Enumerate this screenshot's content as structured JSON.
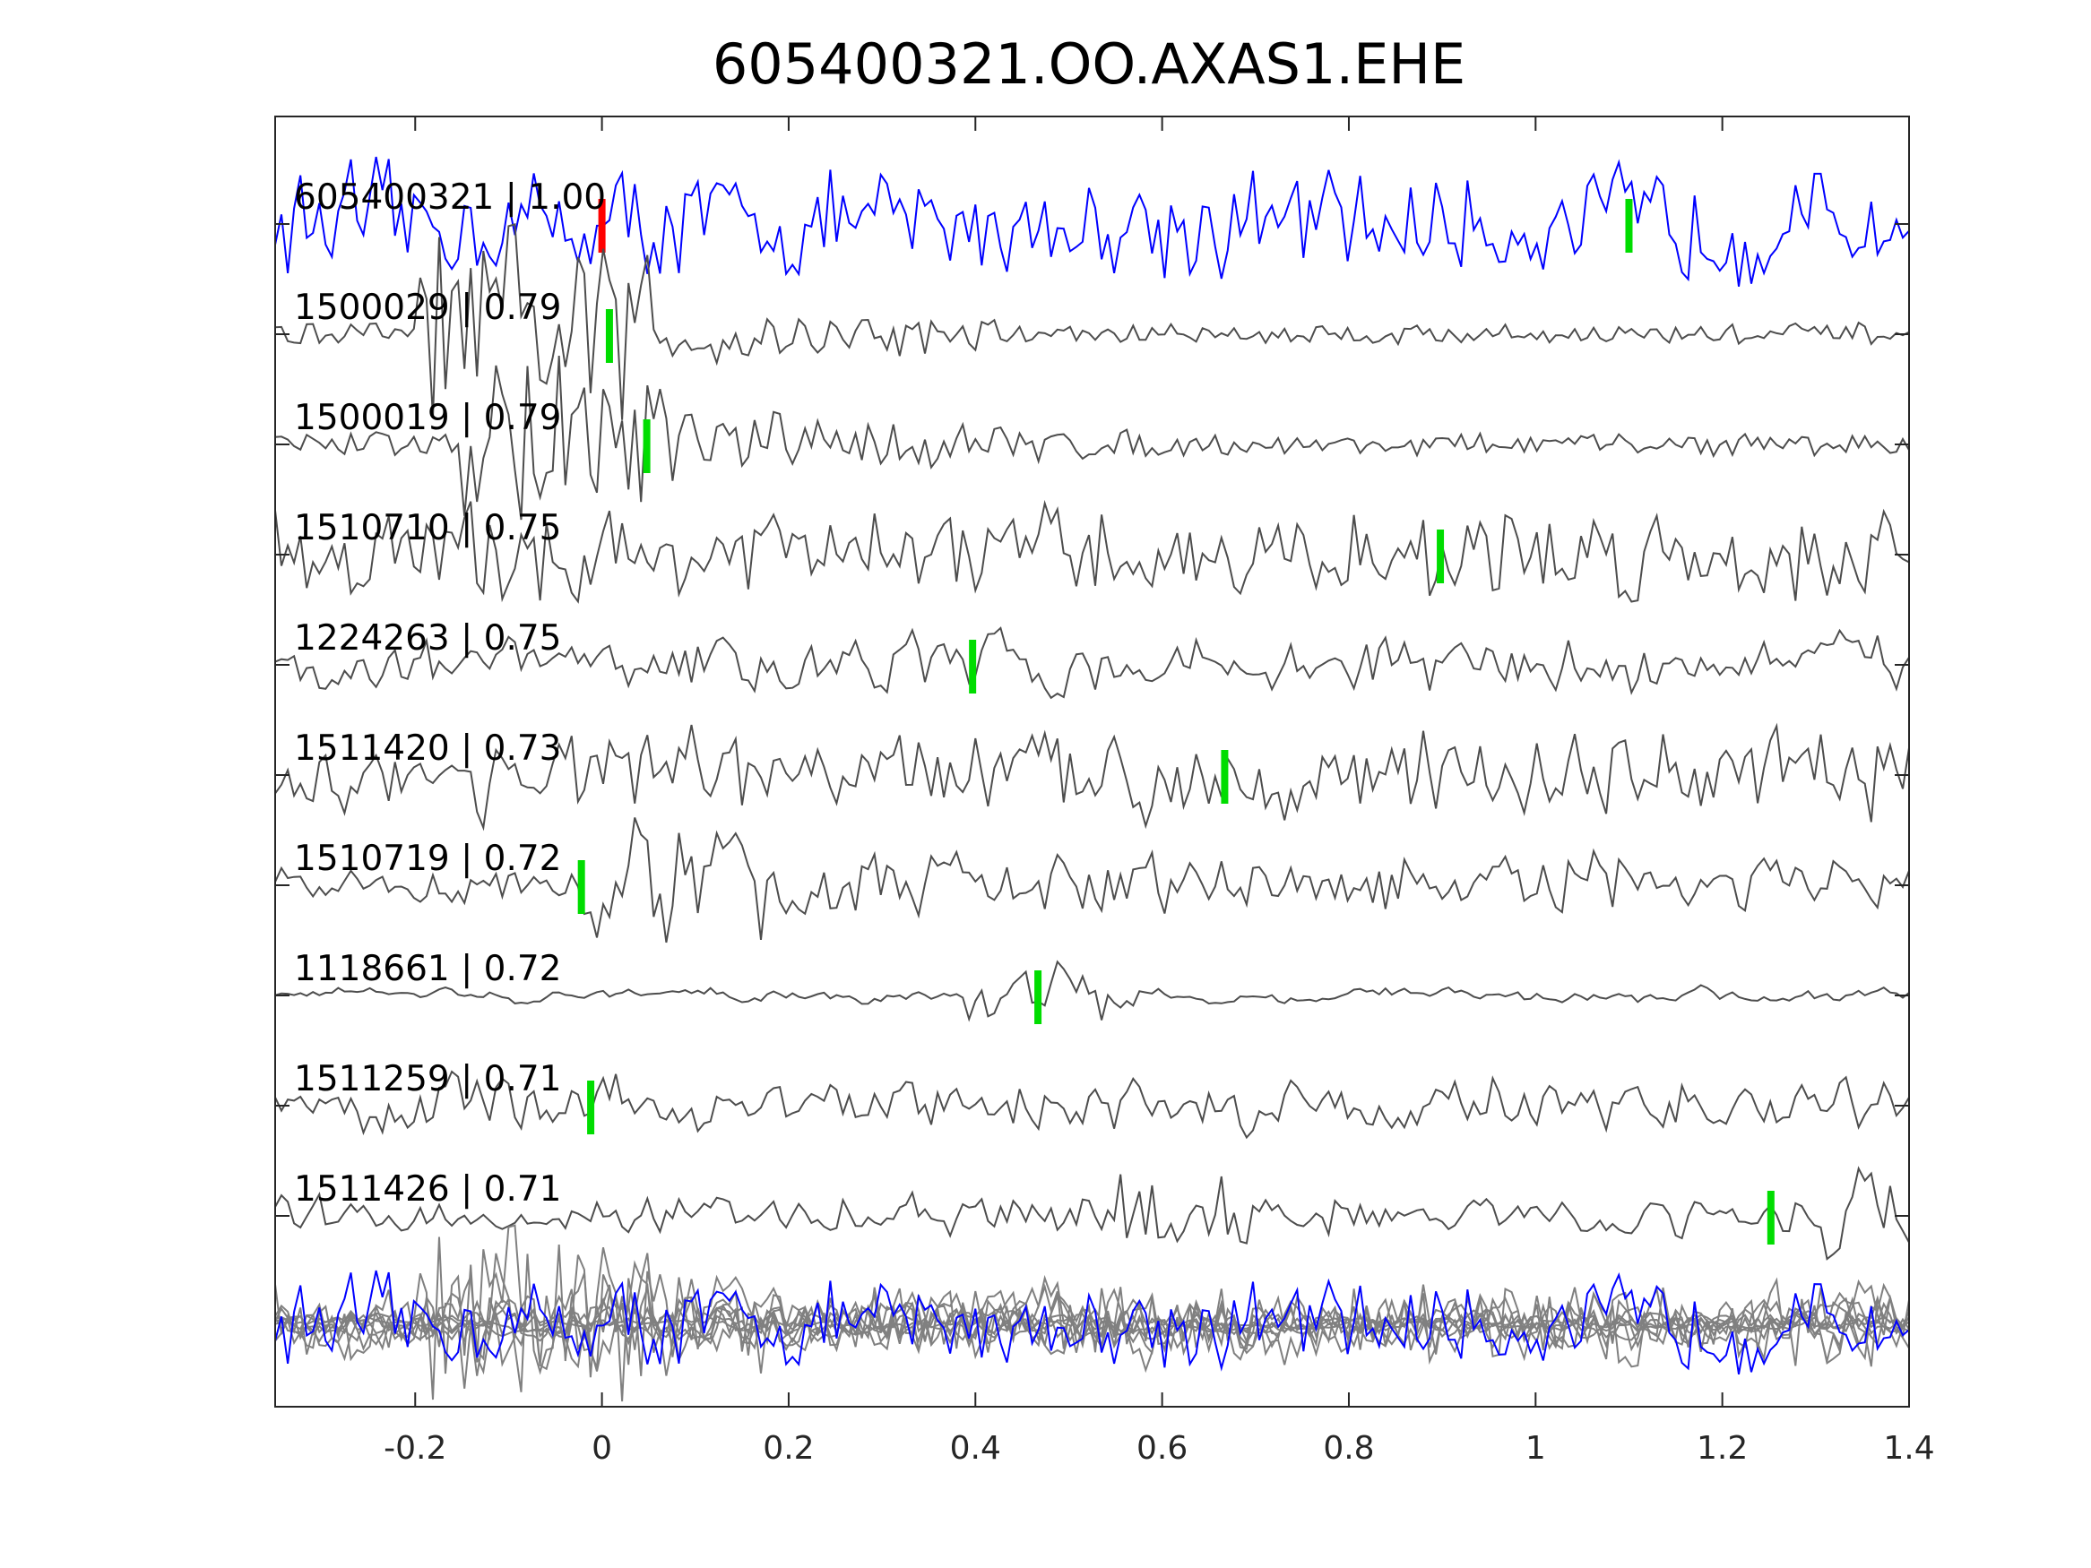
{
  "chart_data": {
    "type": "line",
    "title": "605400321.OO.AXAS1.EHE",
    "xlabel": "",
    "ylabel": "",
    "xlim": [
      -0.35,
      1.4
    ],
    "xticks": [
      -0.2,
      0,
      0.2,
      0.4,
      0.6,
      0.8,
      1,
      1.2,
      1.4
    ],
    "xtick_labels": [
      "-0.2",
      "0",
      "0.2",
      "0.4",
      "0.6",
      "0.8",
      "1",
      "1.2",
      "1.4"
    ],
    "grid": false,
    "colors": {
      "template": "#0000ff",
      "trace": "#4d4d4d",
      "stack": "#808080",
      "pick_main": "#ff0000",
      "pick": "#00dd00"
    },
    "traces": [
      {
        "label": "605400321 | 1.00",
        "template": true,
        "picks": [
          {
            "x": 0.0,
            "color": "red"
          },
          {
            "x": 1.1,
            "color": "green"
          }
        ]
      },
      {
        "label": "1500029 | 0.79",
        "picks": [
          {
            "x": 0.008,
            "color": "green"
          }
        ]
      },
      {
        "label": "1500019 | 0.79",
        "picks": [
          {
            "x": 0.048,
            "color": "green"
          }
        ]
      },
      {
        "label": "1510710 | 0.75",
        "picks": [
          {
            "x": 0.898,
            "color": "green"
          }
        ]
      },
      {
        "label": "1224263 | 0.75",
        "picks": [
          {
            "x": 0.397,
            "color": "green"
          }
        ]
      },
      {
        "label": "1511420 | 0.73",
        "picks": [
          {
            "x": 0.667,
            "color": "green"
          }
        ]
      },
      {
        "label": "1510719 | 0.72",
        "picks": [
          {
            "x": -0.022,
            "color": "green"
          }
        ]
      },
      {
        "label": "1118661 | 0.72",
        "picks": [
          {
            "x": 0.467,
            "color": "green"
          }
        ]
      },
      {
        "label": "1511259 | 0.71",
        "picks": [
          {
            "x": -0.012,
            "color": "green"
          }
        ]
      },
      {
        "label": "1511426 | 0.71",
        "picks": [
          {
            "x": 1.252,
            "color": "green"
          }
        ]
      }
    ]
  }
}
